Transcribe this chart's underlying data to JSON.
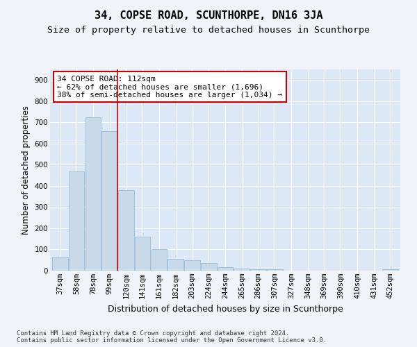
{
  "title": "34, COPSE ROAD, SCUNTHORPE, DN16 3JA",
  "subtitle": "Size of property relative to detached houses in Scunthorpe",
  "xlabel": "Distribution of detached houses by size in Scunthorpe",
  "ylabel": "Number of detached properties",
  "footer_line1": "Contains HM Land Registry data © Crown copyright and database right 2024.",
  "footer_line2": "Contains public sector information licensed under the Open Government Licence v3.0.",
  "categories": [
    "37sqm",
    "58sqm",
    "78sqm",
    "99sqm",
    "120sqm",
    "141sqm",
    "161sqm",
    "182sqm",
    "203sqm",
    "224sqm",
    "244sqm",
    "265sqm",
    "286sqm",
    "307sqm",
    "327sqm",
    "348sqm",
    "369sqm",
    "390sqm",
    "410sqm",
    "431sqm",
    "452sqm"
  ],
  "values": [
    65,
    470,
    725,
    660,
    380,
    160,
    100,
    55,
    50,
    35,
    18,
    10,
    8,
    6,
    0,
    0,
    0,
    0,
    0,
    0,
    8
  ],
  "bar_color": "#c8d9ea",
  "bar_edge_color": "#9bbbd4",
  "vline_x": 3.5,
  "vline_color": "#cc0000",
  "annotation_line1": "34 COPSE ROAD: 112sqm",
  "annotation_line2": "← 62% of detached houses are smaller (1,696)",
  "annotation_line3": "38% of semi-detached houses are larger (1,034) →",
  "annotation_box_color": "#ffffff",
  "annotation_box_edge_color": "#cc0000",
  "ylim": [
    0,
    950
  ],
  "yticks": [
    0,
    100,
    200,
    300,
    400,
    500,
    600,
    700,
    800,
    900
  ],
  "background_color": "#f0f4f8",
  "plot_bg_color": "#dce8f5",
  "title_fontsize": 11,
  "subtitle_fontsize": 9.5,
  "xlabel_fontsize": 9,
  "ylabel_fontsize": 8.5,
  "tick_fontsize": 7.5,
  "annotation_fontsize": 8,
  "footer_fontsize": 6.5
}
